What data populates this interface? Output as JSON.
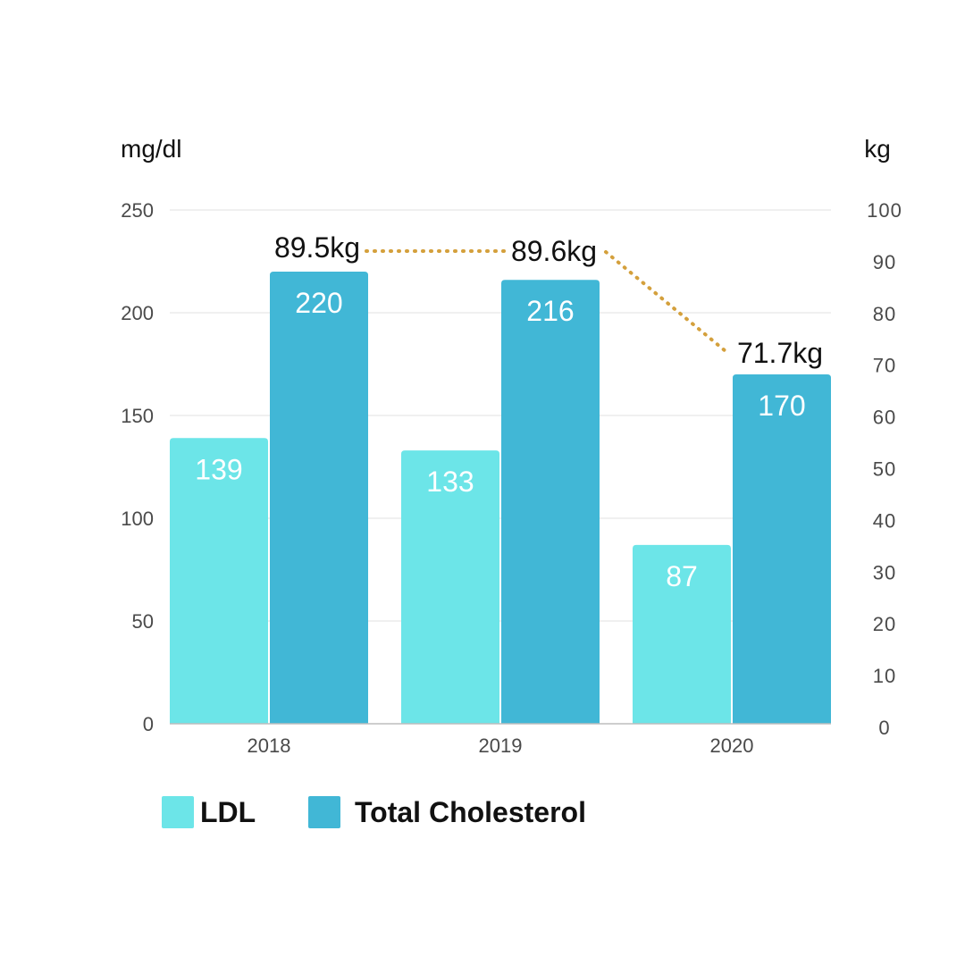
{
  "chart_data": {
    "type": "bar",
    "categories": [
      "2018",
      "2019",
      "2020"
    ],
    "series": [
      {
        "name": "LDL",
        "values": [
          139,
          133,
          87
        ],
        "color": "#6ce5e8"
      },
      {
        "name": "Total Cholesterol",
        "values": [
          220,
          216,
          170
        ],
        "color": "#41b7d6"
      }
    ],
    "ylabel_left": "mg/dl",
    "ylim_left": [
      0,
      250
    ],
    "yticks_left": [
      0,
      50,
      100,
      150,
      200,
      250
    ],
    "line_series": {
      "values": [
        89.5,
        89.6,
        71.7
      ],
      "labels": [
        "89.5kg",
        "89.6kg",
        "71.7kg"
      ],
      "color": "#d4a03c",
      "style": "dotted"
    },
    "ylabel_right": "kg",
    "ylim_right": [
      0,
      100
    ],
    "yticks_right": [
      0,
      10,
      20,
      30,
      40,
      50,
      60,
      70,
      80,
      90,
      100
    ],
    "grid": true,
    "legend": "bottom-left",
    "title": "",
    "xlabel": ""
  }
}
